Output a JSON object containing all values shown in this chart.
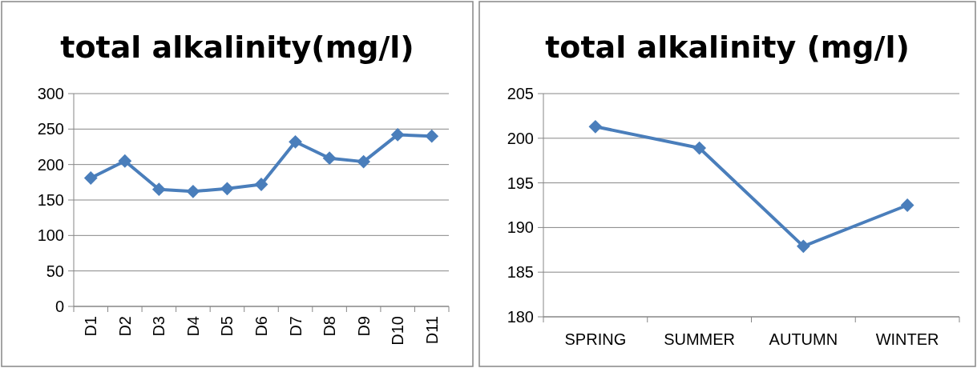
{
  "chart_data": [
    {
      "type": "line",
      "title": "total alkalinity(mg/l)",
      "categories": [
        "D1",
        "D2",
        "D3",
        "D4",
        "D5",
        "D6",
        "D7",
        "D8",
        "D9",
        "D10",
        "D11"
      ],
      "series": [
        {
          "color": "#4a7ebb",
          "values": [
            181,
            205,
            165,
            162,
            166,
            172,
            232,
            209,
            204,
            242,
            240
          ]
        }
      ],
      "ylim": [
        0,
        300
      ],
      "yticks": [
        0,
        50,
        100,
        150,
        200,
        250,
        300
      ],
      "grid": "y",
      "marker": "diamond"
    },
    {
      "type": "line",
      "title": "total alkalinity (mg/l)",
      "categories": [
        "SPRING",
        "SUMMER",
        "AUTUMN",
        "WINTER"
      ],
      "series": [
        {
          "color": "#4a7ebb",
          "values": [
            201.3,
            198.9,
            187.9,
            192.5
          ]
        }
      ],
      "ylim": [
        180,
        205
      ],
      "yticks": [
        180,
        185,
        190,
        195,
        200,
        205
      ],
      "grid": "y",
      "marker": "diamond"
    }
  ]
}
